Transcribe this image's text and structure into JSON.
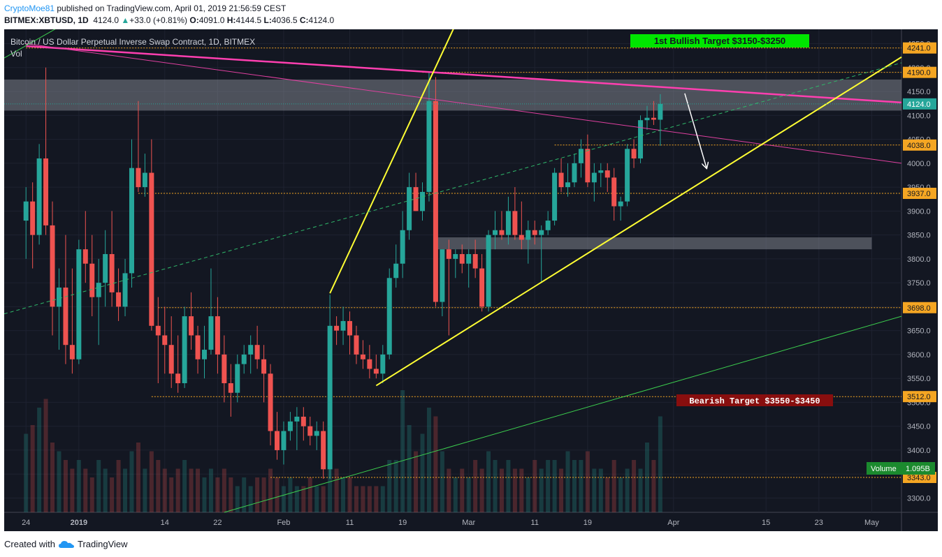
{
  "header": {
    "author": "CryptoMoe81",
    "published": " published on TradingView.com, April 01, 2019 21:56:59 CEST",
    "symbol": "BITMEX:XBTUSD, 1D",
    "last": "4124.0",
    "change": "+33.0 (+0.81%)",
    "o_label": "O:",
    "o": "4091.0",
    "h_label": "H:",
    "h": "4144.5",
    "l_label": "L:",
    "l": "4036.5",
    "c_label": "C:",
    "c": "4124.0"
  },
  "footer": {
    "created_with": "Created with",
    "brand": "TradingView"
  },
  "chart_data": {
    "type": "candlestick",
    "title": "Bitcoin / US Dollar Perpetual Inverse Swap Contract, 1D, BITMEX",
    "volume_label": "Vol",
    "theme": {
      "background": "#131722",
      "up": "#26a69a",
      "down": "#ef5350",
      "grid": "#1e2230"
    },
    "ylim": [
      3270,
      4280
    ],
    "y_ticks": [
      4250,
      4200,
      4150,
      4100,
      4050,
      4000,
      3950,
      3900,
      3850,
      3800,
      3750,
      3700,
      3650,
      3600,
      3550,
      3500,
      3450,
      3400,
      3350,
      3300
    ],
    "x_ticks": [
      {
        "label": "24",
        "day": 0
      },
      {
        "label": "2019",
        "day": 8,
        "bold": true
      },
      {
        "label": "14",
        "day": 21
      },
      {
        "label": "22",
        "day": 29
      },
      {
        "label": "Feb",
        "day": 39
      },
      {
        "label": "11",
        "day": 49
      },
      {
        "label": "19",
        "day": 57
      },
      {
        "label": "Mar",
        "day": 67
      },
      {
        "label": "11",
        "day": 77
      },
      {
        "label": "19",
        "day": 85
      },
      {
        "label": "Apr",
        "day": 98
      },
      {
        "label": "15",
        "day": 112
      },
      {
        "label": "23",
        "day": 120
      },
      {
        "label": "May",
        "day": 128
      }
    ],
    "day_span": [
      -3.3,
      132.5
    ],
    "last_price": 4124.0,
    "price_labels": [
      {
        "value": 4241.0,
        "text": "4241.0"
      },
      {
        "value": 4190.0,
        "text": "4190.0"
      },
      {
        "value": 4124.0,
        "text": "4124.0",
        "current": true
      },
      {
        "value": 4038.0,
        "text": "4038.0"
      },
      {
        "value": 3937.0,
        "text": "3937.0"
      },
      {
        "value": 3698.0,
        "text": "3698.0"
      },
      {
        "value": 3512.0,
        "text": "3512.0"
      },
      {
        "value": 3343.0,
        "text": "3343.0"
      }
    ],
    "volume_badge": {
      "label": "Volume",
      "value": "1.095B"
    },
    "annotations": [
      {
        "text": "1st Bullish Target $3150-$3250",
        "bg": "#00e600",
        "color": "#131722"
      },
      {
        "text": "Bearish Target $3550-$3450",
        "bg": "#880e0e",
        "color": "#ffffff"
      }
    ],
    "horizontal_levels": [
      {
        "value": 4241,
        "from_day": 0
      },
      {
        "value": 4190,
        "from_day": 60
      },
      {
        "value": 4038,
        "from_day": 80
      },
      {
        "value": 3937,
        "from_day": 17
      },
      {
        "value": 3698,
        "from_day": 20
      },
      {
        "value": 3512,
        "from_day": 19
      },
      {
        "value": 3343,
        "from_day": 37
      }
    ],
    "zones": [
      {
        "from_day": -3.3,
        "to_day": 132.5,
        "low": 4110,
        "high": 4175
      },
      {
        "from_day": 62,
        "to_day": 128,
        "low": 3820,
        "high": 3845
      }
    ],
    "trendlines": [
      {
        "color": "#ff3fb0",
        "width": 2.5,
        "points": [
          [
            0,
            4245
          ],
          [
            132.5,
            4127
          ]
        ]
      },
      {
        "color": "#e040a0",
        "width": 1,
        "points": [
          [
            0,
            4250
          ],
          [
            132.5,
            4000
          ]
        ]
      },
      {
        "color": "#ffff33",
        "width": 2,
        "points": [
          [
            53,
            3535
          ],
          [
            132.5,
            4222
          ]
        ]
      },
      {
        "color": "#ffff33",
        "width": 2,
        "points": [
          [
            46,
            3728
          ],
          [
            65,
            4290
          ]
        ]
      },
      {
        "color": "#3ccf4e",
        "width": 1,
        "points": [
          [
            -3.3,
            4220
          ],
          [
            5,
            4285
          ]
        ]
      },
      {
        "color": "#3ccf4e",
        "width": 1,
        "points": [
          [
            30,
            3270
          ],
          [
            132.5,
            3680
          ]
        ]
      },
      {
        "color": "#2fb86a",
        "width": 1,
        "dashed": true,
        "points": [
          [
            -3.3,
            3685
          ],
          [
            132.5,
            4210
          ]
        ]
      },
      {
        "color": "#ffffff",
        "width": 1.5,
        "arrow": true,
        "points": [
          [
            99.7,
            4146
          ],
          [
            103,
            3990
          ]
        ]
      }
    ],
    "candles": [
      [
        0,
        3880,
        3950,
        3800,
        3920
      ],
      [
        1,
        3920,
        3960,
        3780,
        3850
      ],
      [
        2,
        3850,
        4040,
        3830,
        4010
      ],
      [
        3,
        4010,
        4200,
        3850,
        3870
      ],
      [
        4,
        3870,
        3920,
        3640,
        3700
      ],
      [
        5,
        3700,
        3780,
        3610,
        3740
      ],
      [
        6,
        3740,
        3850,
        3580,
        3620
      ],
      [
        7,
        3620,
        3780,
        3560,
        3590
      ],
      [
        8,
        3590,
        3840,
        3580,
        3820
      ],
      [
        9,
        3820,
        3900,
        3750,
        3790
      ],
      [
        10,
        3790,
        3850,
        3680,
        3720
      ],
      [
        11,
        3720,
        3800,
        3620,
        3750
      ],
      [
        12,
        3750,
        3860,
        3700,
        3810
      ],
      [
        13,
        3810,
        3900,
        3700,
        3730
      ],
      [
        14,
        3730,
        3780,
        3670,
        3700
      ],
      [
        15,
        3700,
        3800,
        3680,
        3770
      ],
      [
        16,
        3770,
        4050,
        3740,
        3990
      ],
      [
        17,
        3990,
        4130,
        3940,
        3950
      ],
      [
        18,
        3950,
        4020,
        3930,
        3980
      ],
      [
        19,
        3980,
        4050,
        3650,
        3660
      ],
      [
        20,
        3660,
        3720,
        3540,
        3640
      ],
      [
        21,
        3640,
        3700,
        3560,
        3620
      ],
      [
        22,
        3620,
        3680,
        3530,
        3560
      ],
      [
        23,
        3560,
        3640,
        3520,
        3540
      ],
      [
        24,
        3540,
        3700,
        3530,
        3680
      ],
      [
        25,
        3680,
        3730,
        3610,
        3640
      ],
      [
        26,
        3640,
        3660,
        3560,
        3590
      ],
      [
        27,
        3590,
        3660,
        3550,
        3610
      ],
      [
        28,
        3610,
        3780,
        3600,
        3680
      ],
      [
        29,
        3680,
        3720,
        3560,
        3600
      ],
      [
        30,
        3600,
        3640,
        3500,
        3540
      ],
      [
        31,
        3540,
        3580,
        3470,
        3520
      ],
      [
        32,
        3520,
        3600,
        3500,
        3580
      ],
      [
        33,
        3580,
        3620,
        3560,
        3600
      ],
      [
        34,
        3600,
        3640,
        3560,
        3620
      ],
      [
        35,
        3620,
        3660,
        3570,
        3590
      ],
      [
        36,
        3590,
        3620,
        3500,
        3560
      ],
      [
        37,
        3560,
        3580,
        3410,
        3440
      ],
      [
        38,
        3440,
        3480,
        3380,
        3400
      ],
      [
        39,
        3400,
        3460,
        3370,
        3440
      ],
      [
        40,
        3440,
        3480,
        3420,
        3460
      ],
      [
        41,
        3460,
        3490,
        3400,
        3470
      ],
      [
        42,
        3470,
        3490,
        3420,
        3450
      ],
      [
        43,
        3450,
        3470,
        3410,
        3430
      ],
      [
        44,
        3430,
        3460,
        3400,
        3440
      ],
      [
        45,
        3440,
        3460,
        3340,
        3360
      ],
      [
        46,
        3360,
        3725,
        3340,
        3660
      ],
      [
        47,
        3660,
        3680,
        3620,
        3650
      ],
      [
        48,
        3650,
        3700,
        3620,
        3670
      ],
      [
        49,
        3670,
        3690,
        3600,
        3640
      ],
      [
        50,
        3640,
        3660,
        3580,
        3600
      ],
      [
        51,
        3600,
        3630,
        3570,
        3590
      ],
      [
        52,
        3590,
        3620,
        3550,
        3570
      ],
      [
        53,
        3570,
        3600,
        3550,
        3560
      ],
      [
        54,
        3560,
        3620,
        3540,
        3600
      ],
      [
        55,
        3600,
        3780,
        3590,
        3760
      ],
      [
        56,
        3760,
        3830,
        3740,
        3790
      ],
      [
        57,
        3790,
        3900,
        3760,
        3860
      ],
      [
        58,
        3860,
        3980,
        3840,
        3950
      ],
      [
        59,
        3950,
        3980,
        3900,
        3900
      ],
      [
        60,
        3900,
        3960,
        3880,
        3940
      ],
      [
        61,
        3940,
        4190,
        3920,
        4130
      ],
      [
        62,
        4130,
        4180,
        3700,
        3710
      ],
      [
        63,
        3710,
        3820,
        3680,
        3820
      ],
      [
        64,
        3820,
        3840,
        3640,
        3800
      ],
      [
        65,
        3800,
        3820,
        3760,
        3810
      ],
      [
        66,
        3810,
        3830,
        3770,
        3790
      ],
      [
        67,
        3790,
        3820,
        3740,
        3810
      ],
      [
        68,
        3810,
        3840,
        3760,
        3780
      ],
      [
        69,
        3780,
        3810,
        3690,
        3700
      ],
      [
        70,
        3700,
        3860,
        3690,
        3850
      ],
      [
        71,
        3850,
        3900,
        3820,
        3860
      ],
      [
        72,
        3860,
        3900,
        3840,
        3850
      ],
      [
        73,
        3850,
        3930,
        3830,
        3900
      ],
      [
        74,
        3900,
        3950,
        3840,
        3850
      ],
      [
        75,
        3850,
        3920,
        3820,
        3840
      ],
      [
        76,
        3840,
        3880,
        3790,
        3860
      ],
      [
        77,
        3860,
        3880,
        3830,
        3850
      ],
      [
        78,
        3850,
        3870,
        3750,
        3860
      ],
      [
        79,
        3860,
        3900,
        3850,
        3880
      ],
      [
        80,
        3880,
        3990,
        3870,
        3980
      ],
      [
        81,
        3980,
        4010,
        3940,
        3950
      ],
      [
        82,
        3950,
        4000,
        3930,
        3960
      ],
      [
        83,
        3960,
        4020,
        3950,
        4000
      ],
      [
        84,
        4000,
        4050,
        3970,
        4030
      ],
      [
        85,
        4030,
        4060,
        3950,
        3960
      ],
      [
        86,
        3960,
        4000,
        3920,
        3980
      ],
      [
        87,
        3980,
        4000,
        3950,
        3985
      ],
      [
        88,
        3985,
        4000,
        3940,
        3970
      ],
      [
        89,
        3970,
        3990,
        3880,
        3910
      ],
      [
        90,
        3910,
        3930,
        3880,
        3920
      ],
      [
        91,
        3920,
        4040,
        3910,
        4030
      ],
      [
        92,
        4030,
        4050,
        3990,
        4010
      ],
      [
        93,
        4010,
        4100,
        4000,
        4090
      ],
      [
        94,
        4090,
        4120,
        4070,
        4095
      ],
      [
        95,
        4095,
        4130,
        4080,
        4091
      ],
      [
        96,
        4091,
        4144.5,
        4036.5,
        4124
      ]
    ],
    "volumes": [
      0.9,
      1.0,
      1.2,
      1.3,
      0.8,
      0.7,
      0.6,
      0.5,
      0.6,
      0.5,
      0.4,
      0.6,
      0.5,
      0.4,
      0.6,
      0.5,
      0.7,
      0.8,
      0.5,
      0.7,
      0.6,
      0.5,
      0.4,
      0.5,
      0.6,
      0.5,
      0.5,
      0.4,
      0.5,
      0.4,
      0.5,
      0.4,
      0.3,
      0.4,
      0.3,
      0.4,
      0.4,
      0.5,
      0.4,
      0.3,
      0.4,
      0.3,
      0.3,
      0.4,
      0.3,
      0.3,
      1.2,
      0.5,
      0.4,
      0.4,
      0.3,
      0.3,
      0.3,
      0.3,
      0.3,
      0.6,
      0.6,
      1.4,
      1.0,
      0.7,
      0.9,
      1.2,
      1.1,
      0.7,
      0.5,
      0.4,
      0.5,
      0.4,
      0.6,
      0.5,
      0.7,
      0.6,
      0.5,
      0.6,
      0.5,
      0.5,
      0.4,
      0.6,
      0.5,
      0.6,
      0.6,
      0.5,
      0.7,
      0.6,
      0.6,
      0.7,
      0.5,
      0.5,
      0.4,
      0.6,
      0.4,
      0.5,
      0.6,
      0.5,
      0.8,
      0.6,
      1.1
    ]
  }
}
